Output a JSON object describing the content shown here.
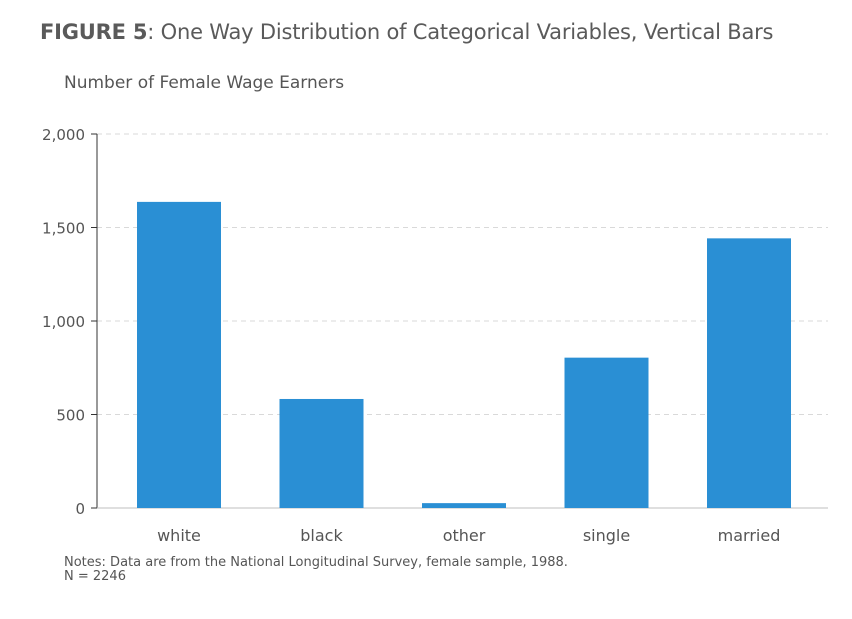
{
  "figure": {
    "number_label": "FIGURE 5",
    "title_rest": ": One Way Distribution of Categorical Variables, Vertical Bars"
  },
  "notes": {
    "line1": "Notes: Data are from the National Longitudinal Survey, female sample, 1988.",
    "line2": "N = 2246"
  },
  "chart_data": {
    "type": "bar",
    "title": "FIGURE 5: One Way Distribution of Categorical Variables, Vertical Bars",
    "ylabel": "Number of Female Wage Earners",
    "xlabel": "",
    "categories": [
      "white",
      "black",
      "other",
      "single",
      "married"
    ],
    "values": [
      1637,
      583,
      26,
      804,
      1442
    ],
    "ylim": [
      0,
      2000
    ],
    "yticks": [
      0,
      500,
      1000,
      1500,
      2000
    ],
    "ytick_labels": [
      "0",
      "500",
      "1,000",
      "1,500",
      "2,000"
    ],
    "grid": "horizontal dashed",
    "bar_color": "#2a8fd4"
  }
}
